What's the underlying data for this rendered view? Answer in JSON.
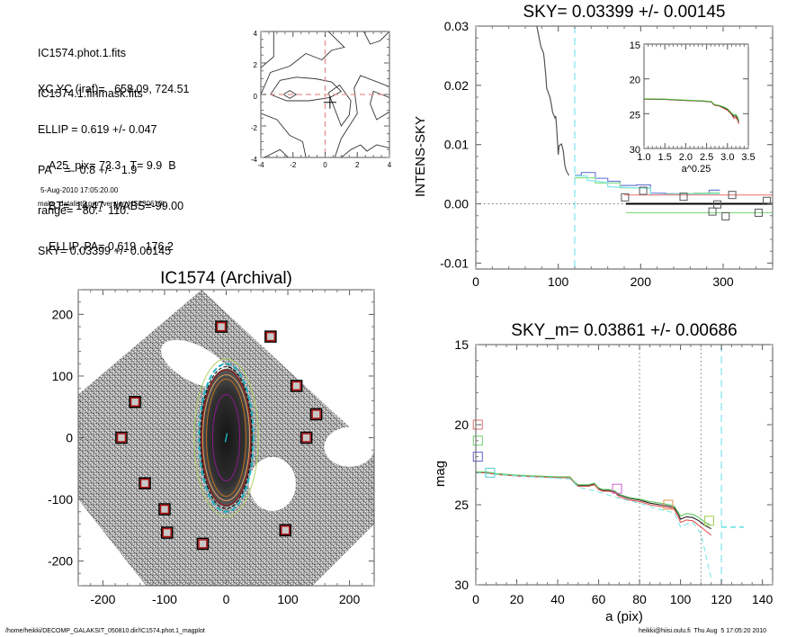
{
  "info_panel": {
    "files": [
      "IC1574.phot.1.fits",
      "IC1574.1.finmask.fits"
    ],
    "params": [
      "XC,YC (iraf)=   658.09, 724.51",
      "ELLIP = 0.619 +/- 0.047",
      "PA    =   0.8 +/-   1.9",
      "range=   80.-  110.",
      "SKY= 0.03399 +/- 0.00145"
    ],
    "results": [
      "A25_pix= 73.3   T= 9.9  B",
      "BT=  14.47   MABS=-99.00",
      "ELLIP, PA= 0.619   176.2"
    ],
    "date": "5-Aug-2010 17:05:20.00",
    "program": "make_datalist0.pro (version HS230610)"
  },
  "footer": {
    "path": "/home/heikki/DECOMP_GALAKSIT_050810.dir/IC1574.phot.1_magplot",
    "user_stamp": "heikki@hiisi.oulu.fi  Thu Aug  5 17:05:20 2010"
  },
  "chart_data": [
    {
      "id": "contour",
      "type": "contour",
      "title": "",
      "xlim": [
        -4,
        4
      ],
      "ylim": [
        -4,
        4
      ],
      "xticks": [
        "-4",
        "-2",
        "0",
        "2",
        "4"
      ],
      "yticks": [
        "-4",
        "-2",
        "0",
        "2",
        "4"
      ],
      "center_marker": [
        0.3,
        -0.5
      ],
      "reference_lines": {
        "x": 0,
        "y": 0,
        "color": "#e89090"
      },
      "contours": [
        [
          [
            -4,
            1.7
          ],
          [
            -3.2,
            2.4
          ],
          [
            -3.2,
            4
          ]
        ],
        [
          [
            -4,
            0
          ],
          [
            -3.4,
            1.4
          ],
          [
            -2.2,
            1.8
          ],
          [
            -1.2,
            2.6
          ],
          [
            -0.2,
            2.2
          ],
          [
            0.4,
            2.8
          ],
          [
            1.2,
            3
          ],
          [
            0.2,
            4
          ]
        ],
        [
          [
            -3.4,
            0
          ],
          [
            -2.8,
            0.9
          ],
          [
            -1.8,
            1.1
          ],
          [
            -0.6,
            1
          ],
          [
            0.4,
            0.8
          ],
          [
            1,
            0.2
          ],
          [
            0.3,
            -0.2
          ],
          [
            -1,
            -0.4
          ],
          [
            -2.4,
            -0.4
          ],
          [
            -3.4,
            0
          ]
        ],
        [
          [
            -2.6,
            0
          ],
          [
            -2.2,
            0.25
          ],
          [
            -1.8,
            0
          ],
          [
            -2.2,
            -0.25
          ],
          [
            -2.6,
            0
          ]
        ],
        [
          [
            0.2,
            0.1
          ],
          [
            0.9,
            0.6
          ],
          [
            1.6,
            -0.4
          ],
          [
            1.5,
            -1.3
          ],
          [
            1,
            -2
          ],
          [
            0.4,
            -0.4
          ],
          [
            0.2,
            0.1
          ]
        ],
        [
          [
            -4,
            -1.2
          ],
          [
            -3,
            -1.6
          ],
          [
            -2.2,
            -2.6
          ],
          [
            -1.4,
            -3
          ],
          [
            -1.2,
            -4
          ]
        ],
        [
          [
            -3.8,
            -4
          ],
          [
            -2.8,
            -3.5
          ],
          [
            -2.3,
            -4
          ]
        ],
        [
          [
            2.4,
            4
          ],
          [
            2.8,
            3.2
          ],
          [
            3.4,
            3.4
          ],
          [
            4,
            4
          ]
        ],
        [
          [
            4,
            0.5
          ],
          [
            2.2,
            1.2
          ],
          [
            1.8,
            0.4
          ],
          [
            2,
            -1.2
          ],
          [
            1,
            -2.8
          ],
          [
            0.6,
            -4
          ]
        ],
        [
          [
            4,
            -0.2
          ],
          [
            3,
            0.2
          ],
          [
            2.8,
            -0.6
          ],
          [
            3.2,
            -1.6
          ],
          [
            4,
            -1.1
          ]
        ],
        [
          [
            2.2,
            -3.2
          ],
          [
            2.6,
            -3.6
          ],
          [
            3.2,
            -3.2
          ],
          [
            4,
            -3.4
          ]
        ],
        [
          [
            1,
            -4
          ],
          [
            1.6,
            -3.5
          ],
          [
            2.2,
            -3.2
          ]
        ]
      ]
    },
    {
      "id": "intens_sky",
      "type": "line",
      "title": "SKY= 0.03399 +/- 0.00145",
      "xlabel": "",
      "ylabel": "INTENS-SKY",
      "xlim": [
        0,
        360
      ],
      "ylim": [
        -0.011,
        0.03
      ],
      "xticks": [
        "0",
        "100",
        "200",
        "300"
      ],
      "yticks": [
        "-0.01",
        "0.00",
        "0.01",
        "0.02",
        "0.03"
      ],
      "dashed_vline_x": 120,
      "zero_dotted_hline": 0,
      "series": [
        {
          "name": "profile",
          "color": "#555555",
          "x": [
            74,
            79,
            82,
            83,
            85,
            86,
            90,
            92,
            93,
            96,
            97,
            98,
            100,
            101,
            104,
            106,
            108,
            110,
            113
          ],
          "y": [
            0.03,
            0.0265,
            0.0255,
            0.0245,
            0.0215,
            0.0195,
            0.018,
            0.0165,
            0.0155,
            0.0145,
            0.0148,
            0.013,
            0.0083,
            0.0098,
            0.0101,
            0.009,
            0.0065,
            0.0055,
            0.0048
          ]
        },
        {
          "name": "step-blue",
          "color": "#6f7fd8",
          "x": [
            120,
            128,
            128,
            145,
            145,
            160,
            160,
            175,
            175,
            195,
            195,
            212,
            212,
            230,
            230,
            265,
            265,
            283,
            283,
            296
          ],
          "y": [
            0.0048,
            0.0048,
            0.0053,
            0.0053,
            0.0043,
            0.0043,
            0.0038,
            0.0038,
            0.0031,
            0.0031,
            0.0032,
            0.0032,
            0.0018,
            0.0018,
            0.0017,
            0.0017,
            0.0018,
            0.0018,
            0.0023,
            0.0023
          ]
        },
        {
          "name": "step-green",
          "color": "#8fe08f",
          "x": [
            120,
            145,
            145,
            175,
            175,
            212,
            212,
            296
          ],
          "y": [
            0.0044,
            0.0044,
            0.0035,
            0.0035,
            0.0027,
            0.0027,
            0.0015,
            0.0019
          ]
        },
        {
          "name": "step-cyan",
          "color": "#7fe6e6",
          "x": [
            120,
            135,
            135,
            160,
            160,
            212,
            212,
            296
          ],
          "y": [
            0.0047,
            0.0047,
            0.004,
            0.0036,
            0.0029,
            0.0026,
            0.0015,
            0.0017
          ]
        }
      ],
      "hlines": [
        {
          "y": 0.0015,
          "x": [
            180,
            360
          ],
          "color": "#f08080"
        },
        {
          "y": 0.0,
          "x": [
            182,
            360
          ],
          "color": "#000000"
        },
        {
          "y": -0.0015,
          "x": [
            182,
            360
          ],
          "color": "#80d880"
        }
      ],
      "squares": [
        [
          181,
          0.0011
        ],
        [
          203,
          0.0022
        ],
        [
          252,
          0.0012
        ],
        [
          287,
          -0.0013
        ],
        [
          293,
          -0.0001
        ],
        [
          303,
          -0.0021
        ],
        [
          311,
          0.0015
        ],
        [
          343,
          -0.0015
        ],
        [
          353,
          0.0005
        ]
      ],
      "inset": {
        "xlabel": "a^0.25",
        "xlim": [
          1.0,
          3.5
        ],
        "ylim": [
          30,
          15
        ],
        "xticks": [
          "1.0",
          "1.5",
          "2.0",
          "2.5",
          "3.0",
          "3.5"
        ],
        "yticks": [
          "15",
          "20",
          "25",
          "30"
        ],
        "series": [
          {
            "name": "red",
            "color": "#e04040",
            "x": [
              1.0,
              1.5,
              2.0,
              2.4,
              2.62,
              2.65,
              2.7,
              2.8,
              2.9,
              3.0,
              3.1,
              3.15,
              3.2,
              3.25,
              3.27
            ],
            "y": [
              22.9,
              22.95,
              23.1,
              23.2,
              23.3,
              23.6,
              23.8,
              23.9,
              24.2,
              24.5,
              25.1,
              25.7,
              25.5,
              26.0,
              26.5
            ]
          },
          {
            "name": "black",
            "color": "#333333",
            "x": [
              1.0,
              1.5,
              2.0,
              2.4,
              2.62,
              2.65,
              2.7,
              2.8,
              2.9,
              3.0,
              3.1,
              3.15,
              3.2,
              3.25,
              3.27
            ],
            "y": [
              22.9,
              22.95,
              23.1,
              23.2,
              23.3,
              23.55,
              23.75,
              23.85,
              24.1,
              24.4,
              25.0,
              25.4,
              25.3,
              25.8,
              26.2
            ]
          },
          {
            "name": "green",
            "color": "#60c040",
            "x": [
              1.0,
              1.5,
              2.0,
              2.4,
              2.62,
              2.65,
              2.7,
              2.8,
              2.9,
              3.0,
              3.1,
              3.15,
              3.2,
              3.25,
              3.27
            ],
            "y": [
              22.85,
              22.9,
              23.05,
              23.15,
              23.25,
              23.5,
              23.7,
              23.8,
              24.0,
              24.3,
              24.9,
              25.2,
              25.1,
              25.6,
              26.0
            ]
          }
        ]
      }
    },
    {
      "id": "image",
      "type": "image",
      "title": "IC1574 (Archival)",
      "xlim": [
        -240,
        240
      ],
      "ylim": [
        -240,
        240
      ],
      "xticks": [
        "-200",
        "-100",
        "0",
        "100",
        "200"
      ],
      "yticks": [
        "-200",
        "-100",
        "0",
        "100",
        "200"
      ],
      "sky_boxes": [
        [
          -8,
          180
        ],
        [
          72,
          164
        ],
        [
          -148,
          58
        ],
        [
          114,
          84
        ],
        [
          146,
          38
        ],
        [
          130,
          0
        ],
        [
          -170,
          0
        ],
        [
          -132,
          -74
        ],
        [
          -100,
          -116
        ],
        [
          -96,
          -154
        ],
        [
          -38,
          -172
        ],
        [
          96,
          -150
        ]
      ],
      "ellipse_colors": [
        "#8a1a8a",
        "#c07020",
        "#e0a060",
        "#9a1010",
        "#000000",
        "#20b0c0",
        "#b0d060"
      ],
      "ellipses_semi_axes": [
        [
          22,
          70
        ],
        [
          32,
          95
        ],
        [
          38,
          102
        ],
        [
          40,
          110
        ],
        [
          42,
          115
        ],
        [
          44,
          120
        ],
        [
          52,
          128
        ]
      ]
    },
    {
      "id": "magprofile",
      "type": "line",
      "title": "SKY_m=  0.03861 +/- 0.00686",
      "xlabel": "a (pix)",
      "ylabel": "mag",
      "xlim": [
        0,
        145
      ],
      "ylim": [
        30,
        15
      ],
      "xticks": [
        "0",
        "20",
        "40",
        "60",
        "80",
        "100",
        "120",
        "140"
      ],
      "yticks": [
        "15",
        "20",
        "25",
        "30"
      ],
      "dotted_vlines_x": [
        80,
        110
      ],
      "dashed_vline_x": 120,
      "series": [
        {
          "name": "black",
          "color": "#222222",
          "x": [
            0,
            5,
            10,
            20,
            30,
            40,
            46,
            48,
            50,
            55,
            58,
            60,
            62,
            65,
            68,
            70,
            75,
            80,
            85,
            90,
            95,
            97,
            99,
            100,
            103,
            106,
            109,
            112,
            115
          ],
          "y": [
            23.0,
            23.0,
            23.1,
            23.2,
            23.25,
            23.3,
            23.3,
            23.6,
            23.8,
            23.8,
            23.7,
            24.0,
            24.1,
            24.1,
            24.2,
            24.4,
            24.6,
            24.7,
            24.9,
            25.0,
            25.1,
            25.2,
            25.6,
            25.9,
            25.75,
            25.8,
            26.0,
            26.3,
            26.5
          ]
        },
        {
          "name": "red",
          "color": "#e05050",
          "x": [
            0,
            5,
            10,
            20,
            30,
            40,
            46,
            48,
            50,
            55,
            58,
            60,
            62,
            65,
            68,
            70,
            75,
            80,
            85,
            90,
            95,
            97,
            99,
            100,
            103,
            106,
            109,
            112,
            115
          ],
          "y": [
            23.0,
            23.0,
            23.1,
            23.2,
            23.25,
            23.3,
            23.3,
            23.6,
            23.85,
            23.85,
            23.75,
            24.05,
            24.15,
            24.15,
            24.25,
            24.5,
            24.7,
            24.8,
            25.0,
            25.1,
            25.2,
            25.3,
            25.8,
            26.1,
            25.95,
            26.0,
            26.3,
            26.6,
            26.9
          ]
        },
        {
          "name": "green",
          "color": "#60c860",
          "x": [
            0,
            5,
            10,
            20,
            30,
            40,
            46,
            48,
            50,
            55,
            58,
            60,
            62,
            65,
            68,
            70,
            75,
            80,
            85,
            90,
            95,
            97,
            99,
            100,
            103,
            106,
            109,
            112,
            115
          ],
          "y": [
            22.95,
            22.95,
            23.05,
            23.15,
            23.2,
            23.25,
            23.25,
            23.55,
            23.75,
            23.75,
            23.65,
            23.95,
            24.05,
            24.05,
            24.15,
            24.35,
            24.55,
            24.65,
            24.8,
            24.9,
            25.0,
            25.1,
            25.5,
            25.7,
            25.55,
            25.6,
            25.8,
            26.1,
            26.3
          ]
        },
        {
          "name": "cyan-dashed",
          "color": "#7fe6e6",
          "dashed": true,
          "x": [
            0,
            10,
            20,
            40,
            46,
            50,
            60,
            70,
            80,
            90,
            97,
            100,
            103,
            106,
            110,
            113,
            115
          ],
          "y": [
            23.0,
            23.1,
            23.2,
            23.35,
            23.4,
            23.9,
            24.2,
            24.6,
            24.9,
            25.3,
            25.5,
            26.4,
            26.2,
            26.1,
            26.8,
            28.5,
            29.6
          ]
        },
        {
          "name": "cyan-sky",
          "color": "#7fe6e6",
          "dashed": true,
          "x": [
            120,
            131
          ],
          "y": [
            26.4,
            26.4
          ]
        }
      ],
      "markers": [
        {
          "x": 1,
          "y": 20.0,
          "color": "#e07070"
        },
        {
          "x": 1,
          "y": 21.0,
          "color": "#70d070"
        },
        {
          "x": 1,
          "y": 22.0,
          "color": "#6060d0"
        },
        {
          "x": 7,
          "y": 23.0,
          "color": "#50d0d0"
        },
        {
          "x": 69,
          "y": 24.0,
          "color": "#d060d0"
        },
        {
          "x": 94,
          "y": 25.0,
          "color": "#e09050"
        },
        {
          "x": 114,
          "y": 26.0,
          "color": "#a0d050"
        }
      ]
    }
  ]
}
